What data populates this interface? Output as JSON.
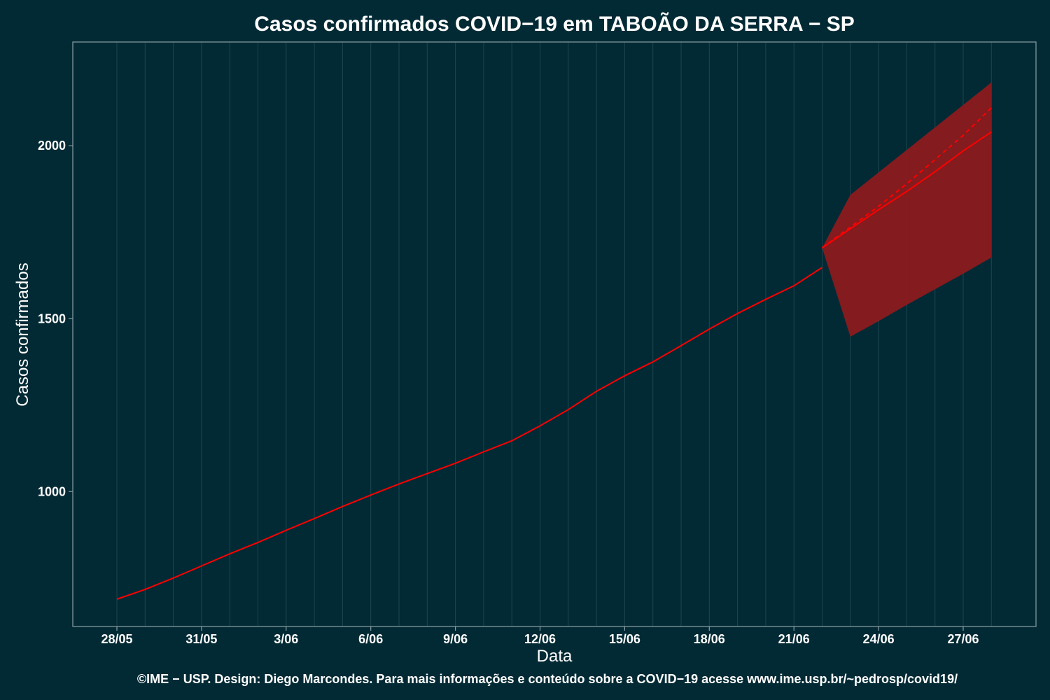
{
  "colors": {
    "background": "#022a35",
    "grid": "#1d4650",
    "axis": "#8a9ea3",
    "line": "#ff0000",
    "band": "#8b1a1e"
  },
  "chart_data": {
    "type": "line",
    "title": "Casos confirmados COVID−19 em TABOÃO DA SERRA − SP",
    "xlabel": "Data",
    "ylabel": "Casos confirmados",
    "footer": "©IME − USP. Design: Diego Marcondes. Para mais informações e conteúdo sobre a COVID−19 acesse www.ime.usp.br/~pedrosp/covid19/",
    "x_ticks": [
      "28/05",
      "31/05",
      "3/06",
      "6/06",
      "9/06",
      "12/06",
      "15/06",
      "18/06",
      "21/06",
      "24/06",
      "27/06"
    ],
    "y_ticks": [
      1000,
      1500,
      2000
    ],
    "ylim": [
      610,
      2300
    ],
    "grid": true,
    "observed": {
      "dates": [
        "28/05",
        "29/05",
        "30/05",
        "31/05",
        "1/06",
        "2/06",
        "3/06",
        "4/06",
        "5/06",
        "6/06",
        "7/06",
        "8/06",
        "9/06",
        "10/06",
        "11/06",
        "12/06",
        "13/06",
        "14/06",
        "15/06",
        "16/06",
        "17/06",
        "18/06",
        "19/06",
        "20/06",
        "21/06",
        "22/06"
      ],
      "values": [
        689,
        717,
        750,
        785,
        820,
        853,
        888,
        922,
        957,
        990,
        1022,
        1052,
        1082,
        1115,
        1147,
        1190,
        1237,
        1290,
        1335,
        1375,
        1422,
        1470,
        1515,
        1556,
        1595,
        1648
      ]
    },
    "forecast": {
      "dates": [
        "22/06",
        "23/06",
        "24/06",
        "25/06",
        "26/06",
        "27/06",
        "28/06"
      ],
      "central": [
        1705,
        1760,
        1815,
        1868,
        1925,
        1985,
        2040
      ],
      "trend": [
        1705,
        1765,
        1825,
        1890,
        1960,
        2030,
        2110
      ],
      "lower": [
        1705,
        1448,
        1493,
        1540,
        1585,
        1630,
        1677
      ],
      "upper": [
        1705,
        1858,
        1923,
        1988,
        2053,
        2118,
        2183
      ]
    }
  }
}
